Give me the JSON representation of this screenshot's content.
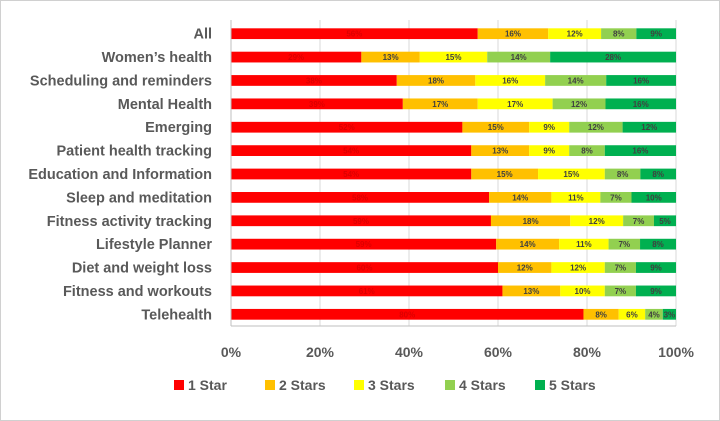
{
  "chart_data": {
    "type": "bar",
    "orientation": "horizontal",
    "stacked": true,
    "percent_stacked": true,
    "title": "",
    "xlabel": "",
    "ylabel": "",
    "xlim": [
      0,
      100
    ],
    "x_ticks": [
      "0%",
      "20%",
      "40%",
      "60%",
      "80%",
      "100%"
    ],
    "grid": true,
    "legend_position": "bottom",
    "categories": [
      "All",
      "Women’s health",
      "Scheduling and reminders",
      "Mental Health",
      "Emerging",
      "Patient health tracking",
      "Education and Information",
      "Sleep and meditation",
      "Fitness activity tracking",
      "Lifestyle Planner",
      "Diet and weight loss",
      "Fitness and workouts",
      "Telehealth"
    ],
    "series": [
      {
        "name": "1 Star",
        "color": "#ff0000",
        "values": [
          56,
          29,
          38,
          39,
          52,
          54,
          54,
          58,
          59,
          59,
          60,
          61,
          80
        ]
      },
      {
        "name": "2 Stars",
        "color": "#ffc000",
        "values": [
          16,
          13,
          18,
          17,
          15,
          13,
          15,
          14,
          18,
          14,
          12,
          13,
          8
        ]
      },
      {
        "name": "3 Stars",
        "color": "#ffff00",
        "values": [
          12,
          15,
          16,
          17,
          9,
          9,
          15,
          11,
          12,
          11,
          12,
          10,
          6
        ]
      },
      {
        "name": "4 Stars",
        "color": "#92d050",
        "values": [
          8,
          14,
          14,
          12,
          12,
          8,
          8,
          7,
          7,
          7,
          7,
          7,
          4
        ]
      },
      {
        "name": "5 Stars",
        "color": "#00b050",
        "values": [
          9,
          28,
          16,
          16,
          12,
          16,
          8,
          10,
          5,
          8,
          9,
          9,
          3
        ]
      }
    ]
  }
}
